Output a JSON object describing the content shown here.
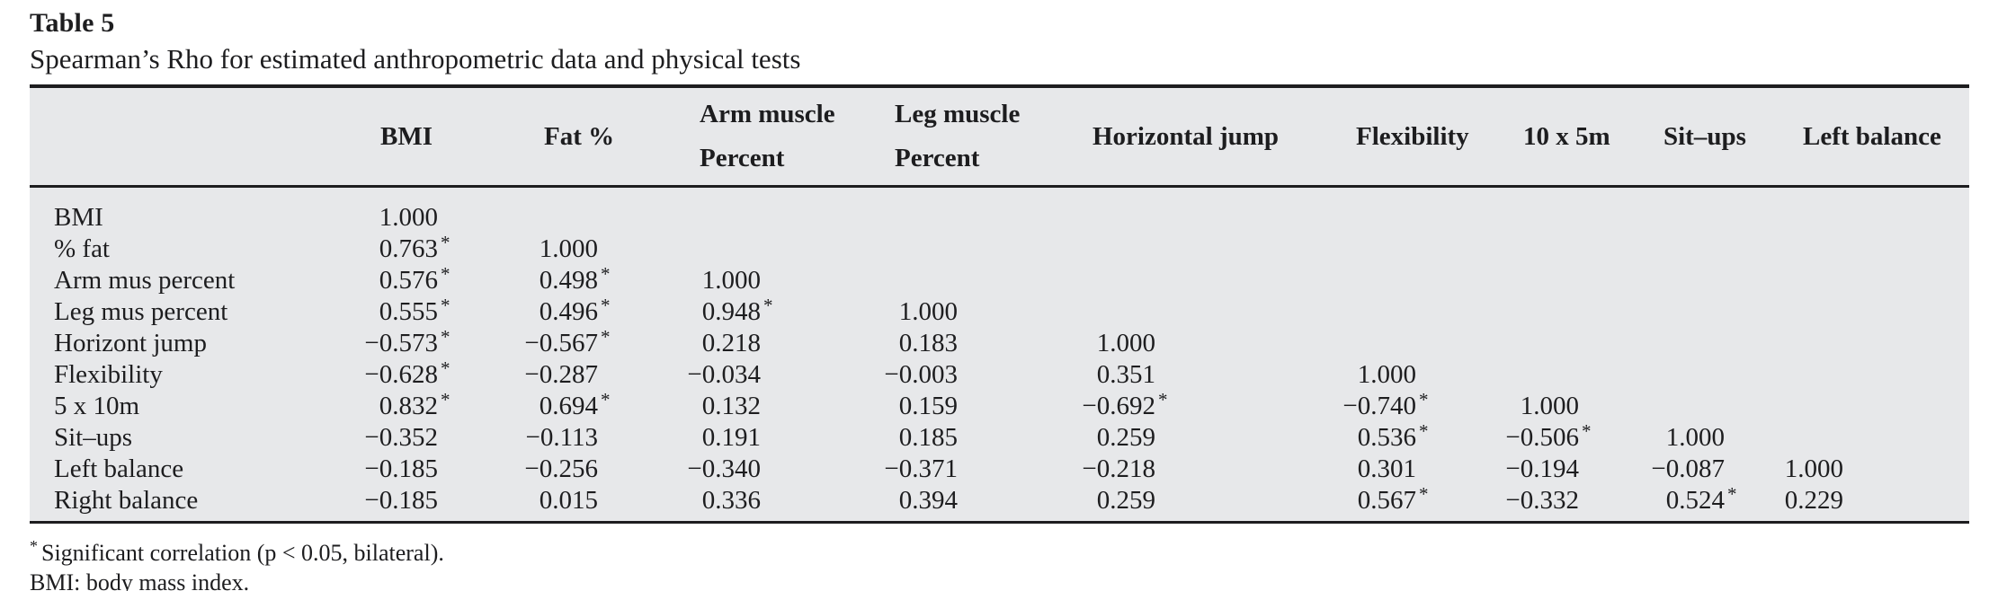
{
  "table": {
    "label": "Table 5",
    "caption": "Spearman’s Rho for estimated anthropometric data and physical tests",
    "colors": {
      "band_background": "#e7e8ea",
      "rule": "#1d1d1f",
      "text": "#1d1d1f"
    },
    "columns": [
      {
        "id": "row-header",
        "lines": []
      },
      {
        "id": "bmi",
        "lines": [
          "BMI"
        ]
      },
      {
        "id": "fat-percent",
        "lines": [
          "Fat %"
        ]
      },
      {
        "id": "arm-muscle-percent",
        "lines": [
          "Arm muscle",
          "Percent"
        ]
      },
      {
        "id": "leg-muscle-percent",
        "lines": [
          "Leg muscle",
          "Percent"
        ]
      },
      {
        "id": "horizontal-jump",
        "lines": [
          "Horizontal jump"
        ]
      },
      {
        "id": "flexibility",
        "lines": [
          "Flexibility"
        ]
      },
      {
        "id": "10x5m",
        "lines": [
          "10 x 5m"
        ]
      },
      {
        "id": "sit-ups",
        "lines": [
          "Sit–ups"
        ]
      },
      {
        "id": "left-balance",
        "lines": [
          "Left balance"
        ]
      }
    ],
    "rows": [
      {
        "label": "BMI",
        "values": [
          "1.000",
          "",
          "",
          "",
          "",
          "",
          "",
          "",
          ""
        ]
      },
      {
        "label": "% fat",
        "values": [
          "0.763*",
          "1.000",
          "",
          "",
          "",
          "",
          "",
          "",
          ""
        ]
      },
      {
        "label": "Arm mus percent",
        "values": [
          "0.576*",
          "0.498*",
          "1.000",
          "",
          "",
          "",
          "",
          "",
          ""
        ]
      },
      {
        "label": "Leg mus percent",
        "values": [
          "0.555*",
          "0.496*",
          "0.948*",
          "1.000",
          "",
          "",
          "",
          "",
          ""
        ]
      },
      {
        "label": "Horizont jump",
        "values": [
          "−0.573*",
          "−0.567*",
          "0.218",
          "0.183",
          "1.000",
          "",
          "",
          "",
          ""
        ]
      },
      {
        "label": "Flexibility",
        "values": [
          "−0.628*",
          "−0.287",
          "−0.034",
          "−0.003",
          "0.351",
          "1.000",
          "",
          "",
          ""
        ]
      },
      {
        "label": "5 x 10m",
        "values": [
          "0.832*",
          "0.694*",
          "0.132",
          "0.159",
          "−0.692*",
          "−0.740*",
          "1.000",
          "",
          ""
        ]
      },
      {
        "label": "Sit–ups",
        "values": [
          "−0.352",
          "−0.113",
          "0.191",
          "0.185",
          "0.259",
          "0.536*",
          "−0.506*",
          "1.000",
          ""
        ]
      },
      {
        "label": "Left balance",
        "values": [
          "−0.185",
          "−0.256",
          "−0.340",
          "−0.371",
          "−0.218",
          "0.301",
          "−0.194",
          "−0.087",
          "1.000"
        ]
      },
      {
        "label": "Right balance",
        "values": [
          "−0.185",
          "0.015",
          "0.336",
          "0.394",
          "0.259",
          "0.567*",
          "−0.332",
          "0.524*",
          "0.229"
        ]
      }
    ],
    "footnotes": [
      {
        "marker": "*",
        "text": "Significant correlation (p < 0.05, bilateral)."
      },
      {
        "marker": "",
        "text": "BMI: body mass index."
      }
    ]
  }
}
